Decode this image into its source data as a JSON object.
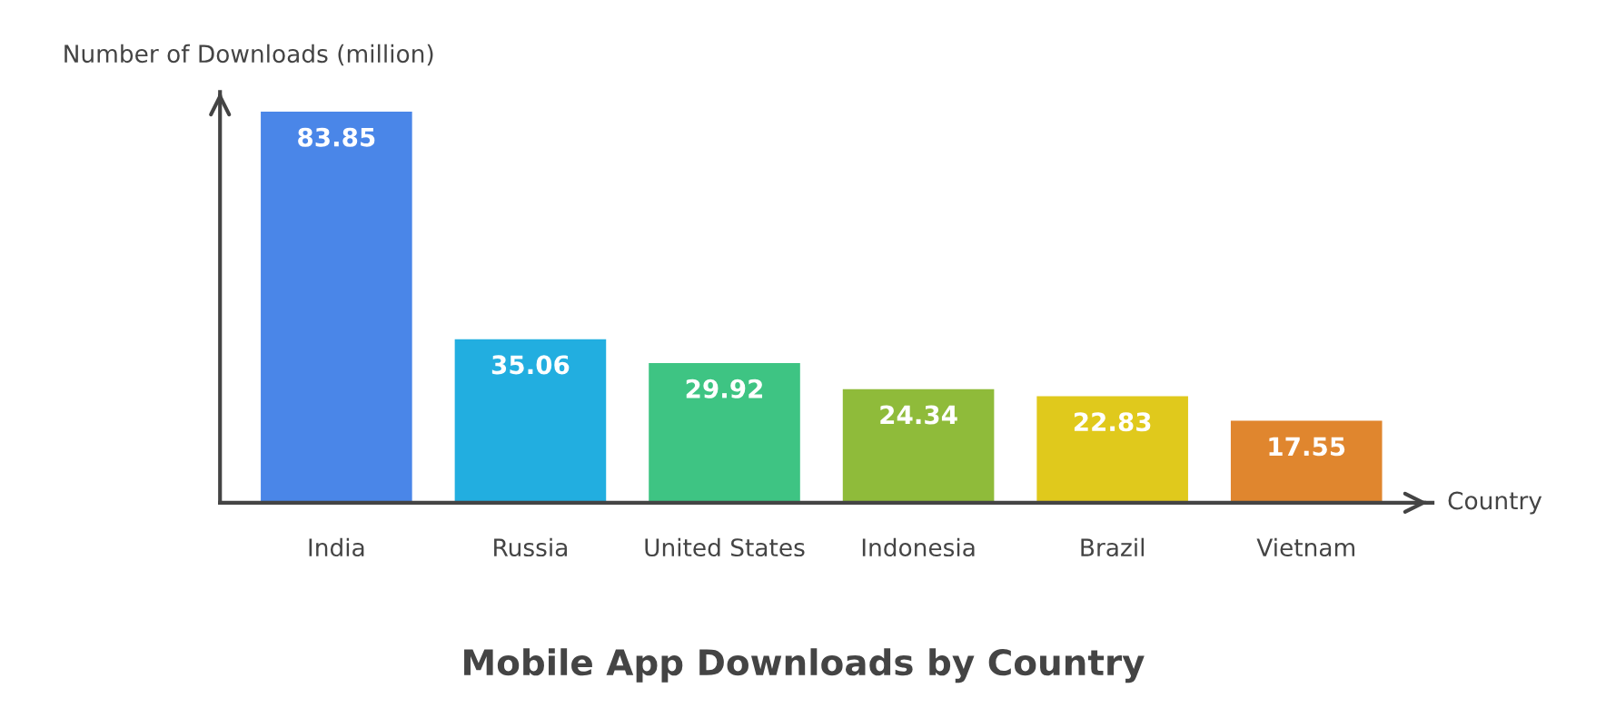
{
  "chart_data": {
    "type": "bar",
    "title": "Mobile App Downloads by Country",
    "xlabel": "Country",
    "ylabel": "Number of Downloads (million)",
    "categories": [
      "India",
      "Russia",
      "United States",
      "Indonesia",
      "Brazil",
      "Vietnam"
    ],
    "values": [
      83.85,
      35.06,
      29.92,
      24.34,
      22.83,
      17.55
    ],
    "colors": [
      "#4a86e8",
      "#22aee0",
      "#3ec483",
      "#8fbb3a",
      "#e0c91c",
      "#e0862e"
    ],
    "data_labels": true,
    "grid": false,
    "legend": false,
    "tick_labels": "x"
  }
}
